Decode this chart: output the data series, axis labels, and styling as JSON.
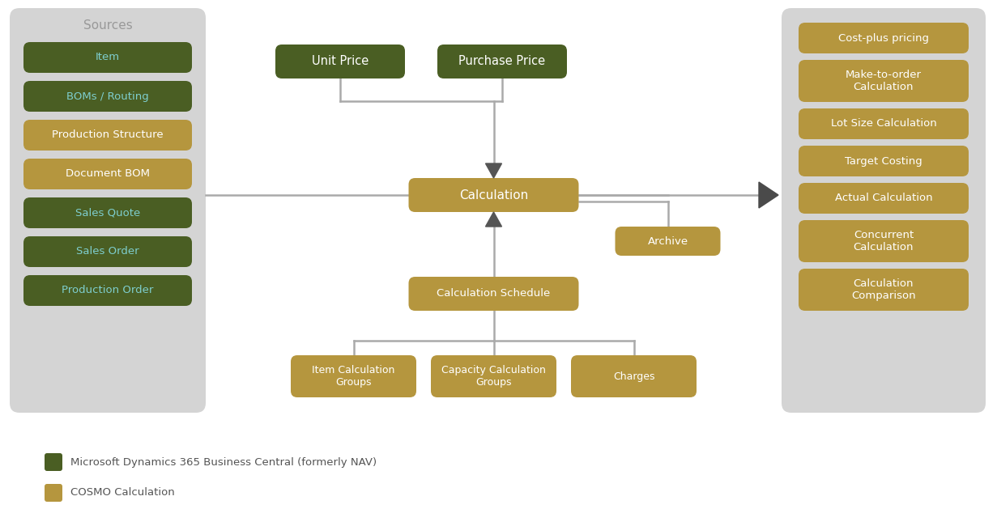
{
  "bg_color": "#d4d4d4",
  "white_bg": "#ffffff",
  "dark_green": "#4a5e23",
  "gold": "#b5963e",
  "gray_text": "#999999",
  "cyan_text": "#7ecece",
  "arrow_color": "#555555",
  "line_color": "#aaaaaa",
  "sources_title": "Sources",
  "sources_boxes": [
    {
      "label": "Item",
      "color": "#4a5e23",
      "text_color": "#7ecece"
    },
    {
      "label": "BOMs / Routing",
      "color": "#4a5e23",
      "text_color": "#7ecece"
    },
    {
      "label": "Production Structure",
      "color": "#b5963e",
      "text_color": "#ffffff"
    },
    {
      "label": "Document BOM",
      "color": "#b5963e",
      "text_color": "#ffffff"
    },
    {
      "label": "Sales Quote",
      "color": "#4a5e23",
      "text_color": "#7ecece"
    },
    {
      "label": "Sales Order",
      "color": "#4a5e23",
      "text_color": "#7ecece"
    },
    {
      "label": "Production Order",
      "color": "#4a5e23",
      "text_color": "#7ecece"
    }
  ],
  "right_boxes": [
    {
      "label": "Cost-plus pricing",
      "color": "#b5963e",
      "text_color": "#ffffff",
      "lines": 1
    },
    {
      "label": "Make-to-order\nCalculation",
      "color": "#b5963e",
      "text_color": "#ffffff",
      "lines": 2
    },
    {
      "label": "Lot Size Calculation",
      "color": "#b5963e",
      "text_color": "#ffffff",
      "lines": 1
    },
    {
      "label": "Target Costing",
      "color": "#b5963e",
      "text_color": "#ffffff",
      "lines": 1
    },
    {
      "label": "Actual Calculation",
      "color": "#b5963e",
      "text_color": "#ffffff",
      "lines": 1
    },
    {
      "label": "Concurrent\nCalculation",
      "color": "#b5963e",
      "text_color": "#ffffff",
      "lines": 2
    },
    {
      "label": "Calculation\nComparison",
      "color": "#b5963e",
      "text_color": "#ffffff",
      "lines": 2
    }
  ],
  "legend": [
    {
      "label": "Microsoft Dynamics 365 Business Central (formerly NAV)",
      "color": "#4a5e23"
    },
    {
      "label": "COSMO Calculation",
      "color": "#b5963e"
    }
  ]
}
